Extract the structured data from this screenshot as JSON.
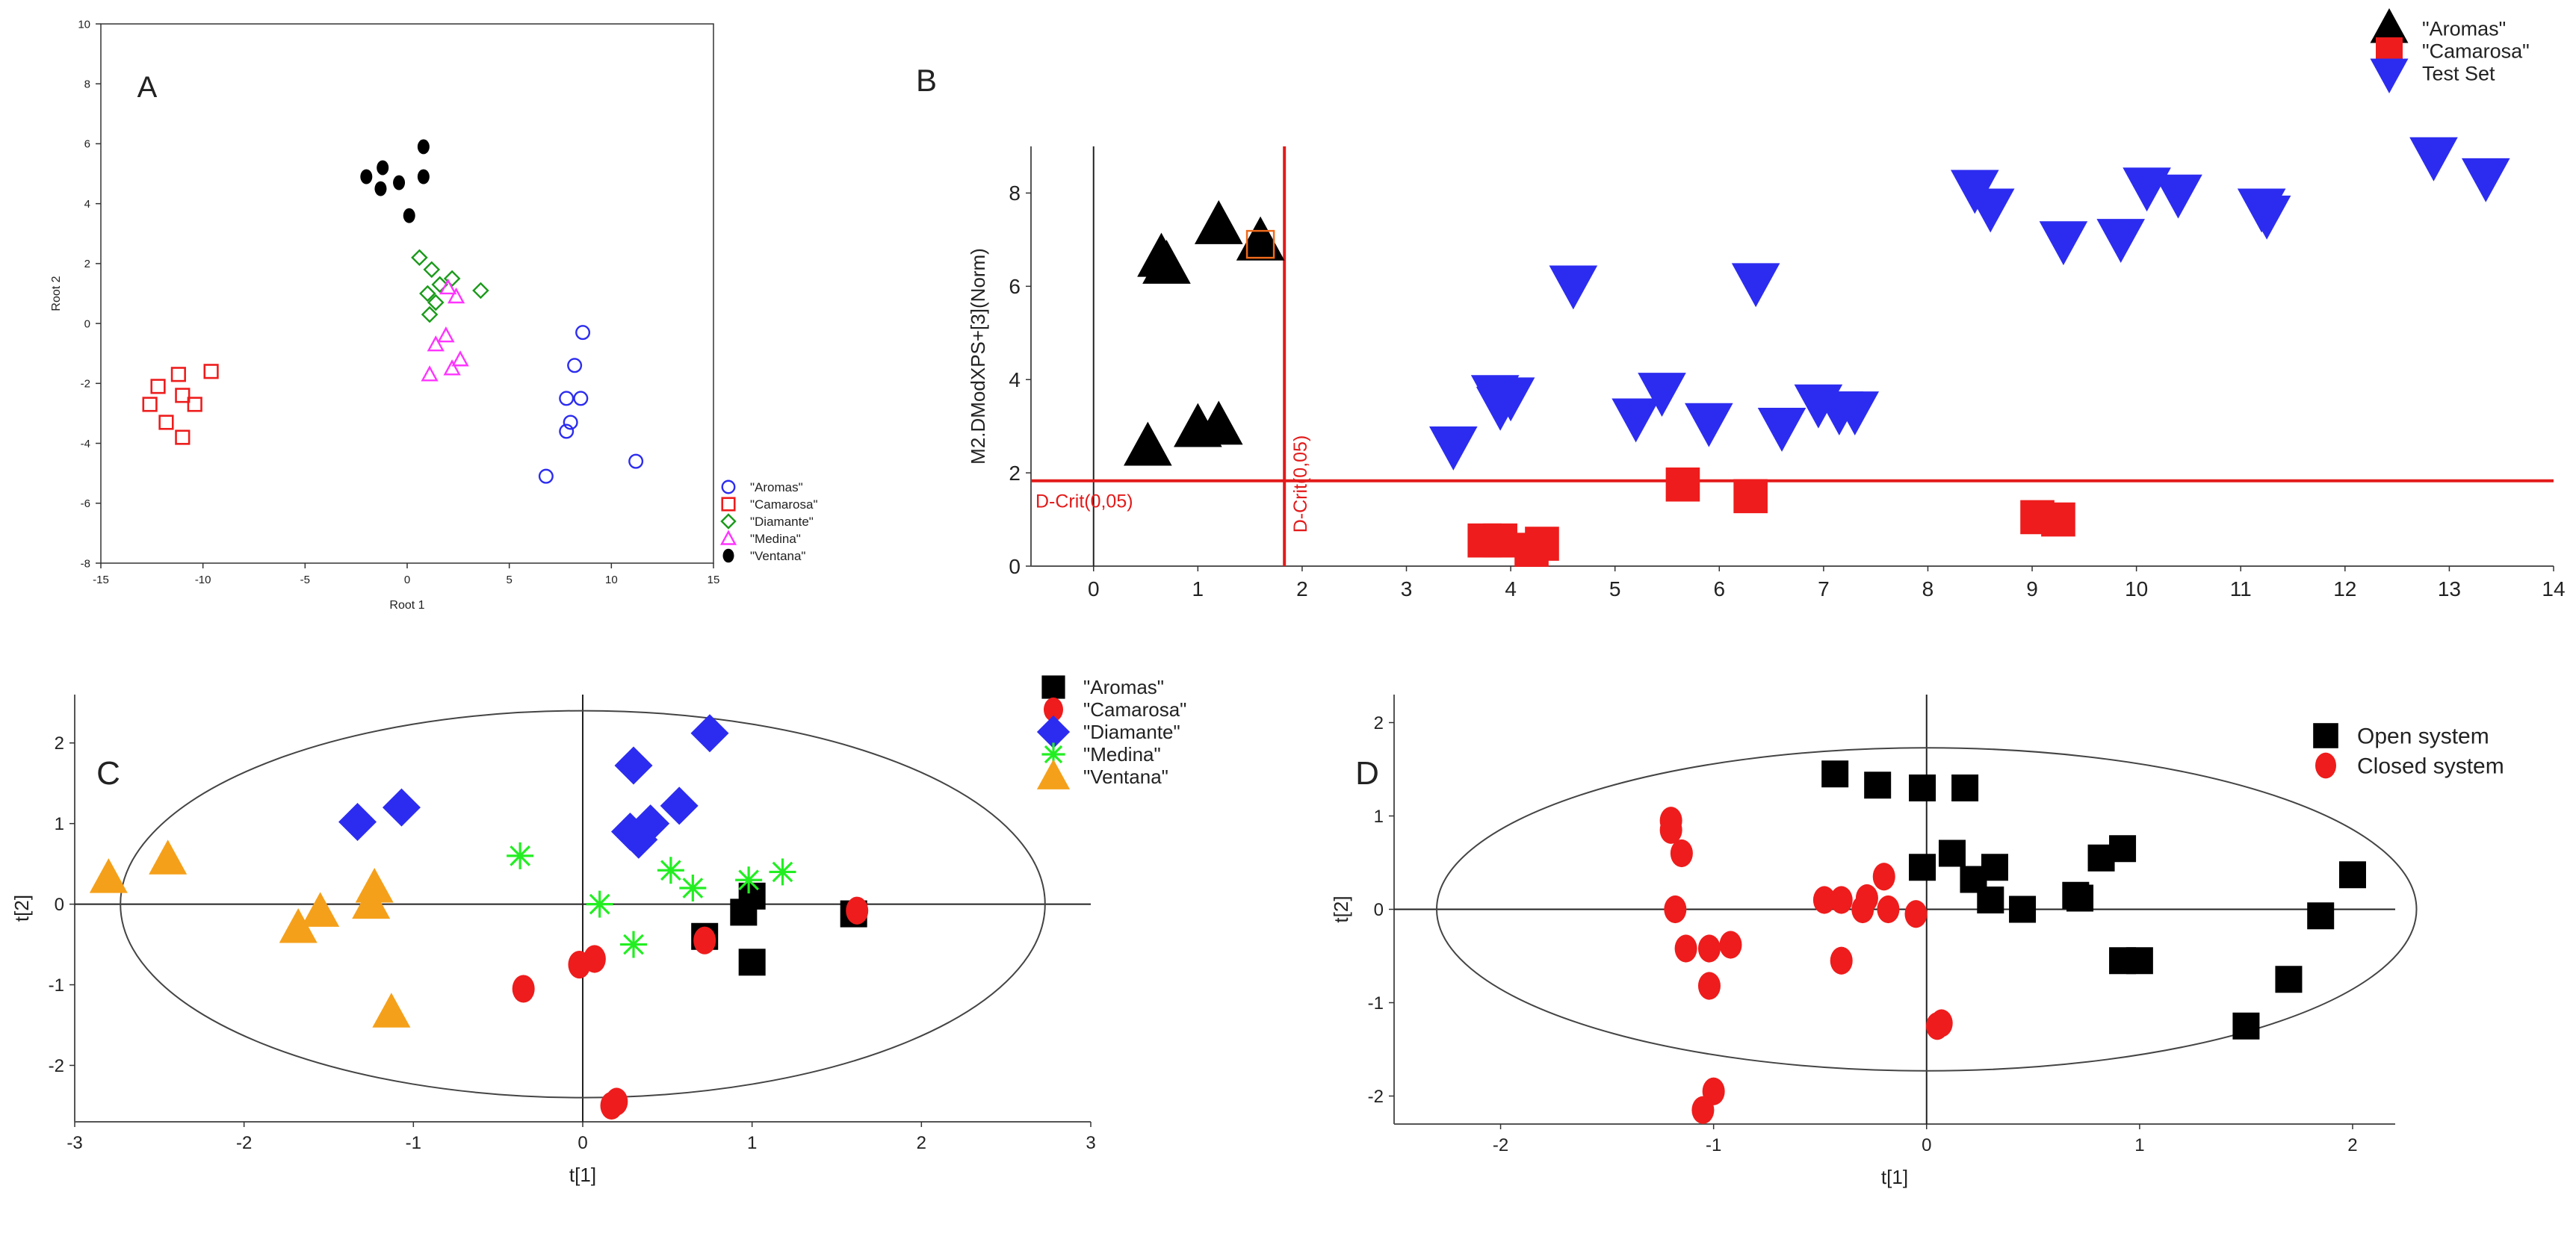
{
  "colors": {
    "black": "#000000",
    "red": "#ee1c1c",
    "green": "#1a9a1a",
    "magenta": "#ff33ff",
    "blue": "#2c2cf0",
    "lime": "#22ee22",
    "orange": "#f5a01a",
    "critical_line": "#e31a1a",
    "ellipse": "#444444",
    "axis": "#555555"
  },
  "chart_data": [
    {
      "id": "A",
      "panel_letter": "A",
      "type": "scatter",
      "title": "",
      "xlabel": "Root 1",
      "ylabel": "Root 2",
      "xlim": [
        -15,
        15
      ],
      "ylim": [
        -8,
        10
      ],
      "xticks": [
        -15,
        -10,
        -5,
        0,
        5,
        10,
        15
      ],
      "yticks": [
        -8,
        -6,
        -4,
        -2,
        0,
        2,
        4,
        6,
        8,
        10
      ],
      "grid": false,
      "legend_position": "bottom-right",
      "series": [
        {
          "name": "\"Aromas\"",
          "marker": "circle-open",
          "color": "#2c2cf0",
          "points": [
            [
              8.6,
              -0.3
            ],
            [
              8.2,
              -1.4
            ],
            [
              7.8,
              -2.5
            ],
            [
              8.5,
              -2.5
            ],
            [
              8.0,
              -3.3
            ],
            [
              7.8,
              -3.6
            ],
            [
              6.8,
              -5.1
            ],
            [
              11.2,
              -4.6
            ]
          ]
        },
        {
          "name": "\"Camarosa\"",
          "marker": "square-open",
          "color": "#ee1c1c",
          "points": [
            [
              -11.2,
              -1.7
            ],
            [
              -9.6,
              -1.6
            ],
            [
              -12.2,
              -2.1
            ],
            [
              -11.0,
              -2.4
            ],
            [
              -10.4,
              -2.7
            ],
            [
              -12.6,
              -2.7
            ],
            [
              -11.8,
              -3.3
            ],
            [
              -11.0,
              -3.8
            ]
          ]
        },
        {
          "name": "\"Diamante\"",
          "marker": "diamond-open",
          "color": "#1a9a1a",
          "points": [
            [
              0.6,
              2.2
            ],
            [
              1.2,
              1.8
            ],
            [
              2.2,
              1.5
            ],
            [
              1.6,
              1.3
            ],
            [
              1.0,
              1.0
            ],
            [
              3.6,
              1.1
            ],
            [
              1.4,
              0.7
            ],
            [
              1.1,
              0.3
            ]
          ]
        },
        {
          "name": "\"Medina\"",
          "marker": "triangle-open",
          "color": "#ff33ff",
          "points": [
            [
              2.0,
              1.2
            ],
            [
              2.4,
              0.9
            ],
            [
              1.9,
              -0.4
            ],
            [
              1.4,
              -0.7
            ],
            [
              2.6,
              -1.2
            ],
            [
              2.2,
              -1.5
            ],
            [
              1.1,
              -1.7
            ]
          ]
        },
        {
          "name": "\"Ventana\"",
          "marker": "circle-filled",
          "color": "#000000",
          "points": [
            [
              -1.2,
              5.2
            ],
            [
              -2.0,
              4.9
            ],
            [
              -1.3,
              4.5
            ],
            [
              -0.4,
              4.7
            ],
            [
              0.8,
              5.9
            ],
            [
              0.8,
              4.9
            ],
            [
              0.1,
              3.6
            ]
          ]
        }
      ]
    },
    {
      "id": "B",
      "panel_letter": "B",
      "type": "scatter",
      "title": "",
      "xlabel": "",
      "ylabel": "M2.DModXPS+[3](Norm)",
      "xlim": [
        -0.6,
        14
      ],
      "ylim": [
        0,
        9
      ],
      "xticks": [
        0,
        1,
        2,
        3,
        4,
        5,
        6,
        7,
        8,
        9,
        10,
        11,
        12,
        13,
        14
      ],
      "yticks": [
        0,
        2,
        4,
        6,
        8
      ],
      "grid": false,
      "legend_position": "top-right",
      "critical_label_h": "D-Crit(0,05)",
      "critical_label_v": "D-Crit(0,05)",
      "critical_value": 1.83,
      "series": [
        {
          "name": "\"Aromas\"",
          "marker": "triangle-up-filled",
          "color": "#000000",
          "points": [
            [
              0.65,
              6.6
            ],
            [
              0.7,
              6.45
            ],
            [
              1.2,
              7.3
            ],
            [
              1.6,
              6.95
            ],
            [
              0.52,
              2.55
            ],
            [
              1.0,
              2.95
            ],
            [
              1.2,
              3.0
            ]
          ]
        },
        {
          "name": "\"Camarosa\"",
          "marker": "square-filled",
          "color": "#ee1c1c",
          "points": [
            [
              3.75,
              0.55
            ],
            [
              3.9,
              0.55
            ],
            [
              4.3,
              0.48
            ],
            [
              4.2,
              0.35
            ],
            [
              5.65,
              1.75
            ],
            [
              6.3,
              1.5
            ],
            [
              9.05,
              1.05
            ],
            [
              9.25,
              1.0
            ],
            [
              1.6,
              6.9
            ]
          ]
        },
        {
          "name": "Test Set",
          "marker": "triangle-down-filled",
          "color": "#2c2cf0",
          "points": [
            [
              3.45,
              2.6
            ],
            [
              3.85,
              3.7
            ],
            [
              4.0,
              3.65
            ],
            [
              3.9,
              3.45
            ],
            [
              4.6,
              6.05
            ],
            [
              5.2,
              3.2
            ],
            [
              5.45,
              3.75
            ],
            [
              5.9,
              3.1
            ],
            [
              6.35,
              6.1
            ],
            [
              6.6,
              3.0
            ],
            [
              6.95,
              3.5
            ],
            [
              7.15,
              3.35
            ],
            [
              7.3,
              3.35
            ],
            [
              8.45,
              8.1
            ],
            [
              8.6,
              7.7
            ],
            [
              9.3,
              7.0
            ],
            [
              9.85,
              7.05
            ],
            [
              10.1,
              8.15
            ],
            [
              10.4,
              8.0
            ],
            [
              11.2,
              7.7
            ],
            [
              11.25,
              7.55
            ],
            [
              12.85,
              8.8
            ],
            [
              13.35,
              8.35
            ]
          ]
        }
      ]
    },
    {
      "id": "C",
      "panel_letter": "C",
      "type": "scatter",
      "title": "",
      "xlabel": "t[1]",
      "ylabel": "t[2]",
      "xlim": [
        -3,
        3
      ],
      "ylim": [
        -2.7,
        2.6
      ],
      "xticks": [
        -3,
        -2,
        -1,
        0,
        1,
        2,
        3
      ],
      "yticks": [
        -2,
        -1,
        0,
        1,
        2
      ],
      "grid": false,
      "legend_position": "top-right",
      "ellipse": {
        "cx": 0,
        "cy": 0,
        "rx": 2.73,
        "ry": 2.4
      },
      "series": [
        {
          "name": "\"Aromas\"",
          "marker": "square-filled",
          "color": "#000000",
          "points": [
            [
              0.95,
              -0.1
            ],
            [
              1.0,
              0.1
            ],
            [
              0.72,
              -0.4
            ],
            [
              1.0,
              -0.72
            ],
            [
              1.6,
              -0.12
            ]
          ]
        },
        {
          "name": "\"Camarosa\"",
          "marker": "circle-filled",
          "color": "#ee1c1c",
          "points": [
            [
              -0.35,
              -1.05
            ],
            [
              -0.02,
              -0.75
            ],
            [
              0.07,
              -0.68
            ],
            [
              0.72,
              -0.45
            ],
            [
              1.62,
              -0.08
            ],
            [
              0.17,
              -2.5
            ],
            [
              0.2,
              -2.45
            ]
          ]
        },
        {
          "name": "\"Diamante\"",
          "marker": "diamond-filled",
          "color": "#2c2cf0",
          "points": [
            [
              0.75,
              2.12
            ],
            [
              0.3,
              1.72
            ],
            [
              -1.33,
              1.02
            ],
            [
              -1.07,
              1.2
            ],
            [
              0.57,
              1.22
            ],
            [
              0.4,
              1.0
            ],
            [
              0.28,
              0.9
            ],
            [
              0.33,
              0.8
            ]
          ]
        },
        {
          "name": "\"Medina\"",
          "marker": "asterisk",
          "color": "#22ee22",
          "points": [
            [
              -0.37,
              0.6
            ],
            [
              0.1,
              0.0
            ],
            [
              0.52,
              0.42
            ],
            [
              0.65,
              0.2
            ],
            [
              0.98,
              0.3
            ],
            [
              1.18,
              0.4
            ],
            [
              0.3,
              -0.5
            ]
          ]
        },
        {
          "name": "\"Ventana\"",
          "marker": "triangle-up-filled",
          "color": "#f5a01a",
          "points": [
            [
              -2.8,
              0.32
            ],
            [
              -2.45,
              0.55
            ],
            [
              -1.23,
              0.2
            ],
            [
              -1.25,
              0.0
            ],
            [
              -1.55,
              -0.1
            ],
            [
              -1.68,
              -0.3
            ],
            [
              -1.13,
              -1.35
            ]
          ]
        }
      ]
    },
    {
      "id": "D",
      "panel_letter": "D",
      "type": "scatter",
      "title": "",
      "xlabel": "t[1]",
      "ylabel": "t[2]",
      "xlim": [
        -2.5,
        2.2
      ],
      "ylim": [
        -2.3,
        2.3
      ],
      "xticks": [
        -2,
        -1,
        0,
        1,
        2
      ],
      "yticks": [
        -2,
        -1,
        0,
        1,
        2
      ],
      "grid": false,
      "legend_position": "top-right",
      "ellipse": {
        "cx": 0,
        "cy": 0,
        "rx": 2.3,
        "ry": 1.73
      },
      "series": [
        {
          "name": "Open system",
          "marker": "square-filled",
          "color": "#000000",
          "points": [
            [
              -0.43,
              1.45
            ],
            [
              -0.23,
              1.33
            ],
            [
              -0.02,
              1.3
            ],
            [
              0.18,
              1.3
            ],
            [
              -0.02,
              0.45
            ],
            [
              0.12,
              0.6
            ],
            [
              0.22,
              0.32
            ],
            [
              0.32,
              0.45
            ],
            [
              0.3,
              0.1
            ],
            [
              0.45,
              0.0
            ],
            [
              0.7,
              0.15
            ],
            [
              0.72,
              0.12
            ],
            [
              0.82,
              0.55
            ],
            [
              0.92,
              0.65
            ],
            [
              0.92,
              -0.55
            ],
            [
              1.0,
              -0.55
            ],
            [
              1.5,
              -1.25
            ],
            [
              1.7,
              -0.75
            ],
            [
              1.85,
              -0.07
            ],
            [
              2.0,
              0.37
            ]
          ]
        },
        {
          "name": "Closed system",
          "marker": "circle-filled",
          "color": "#ee1c1c",
          "points": [
            [
              -1.2,
              0.95
            ],
            [
              -1.2,
              0.85
            ],
            [
              -1.15,
              0.6
            ],
            [
              -1.18,
              0.0
            ],
            [
              -1.13,
              -0.42
            ],
            [
              -1.02,
              -0.42
            ],
            [
              -0.92,
              -0.38
            ],
            [
              -1.02,
              -0.82
            ],
            [
              -1.0,
              -1.95
            ],
            [
              -1.05,
              -2.15
            ],
            [
              -0.48,
              0.1
            ],
            [
              -0.4,
              0.1
            ],
            [
              -0.2,
              0.35
            ],
            [
              -0.28,
              0.12
            ],
            [
              -0.3,
              0.0
            ],
            [
              -0.18,
              0.0
            ],
            [
              -0.05,
              -0.05
            ],
            [
              -0.4,
              -0.55
            ],
            [
              0.05,
              -1.25
            ],
            [
              0.07,
              -1.22
            ]
          ]
        }
      ]
    }
  ]
}
